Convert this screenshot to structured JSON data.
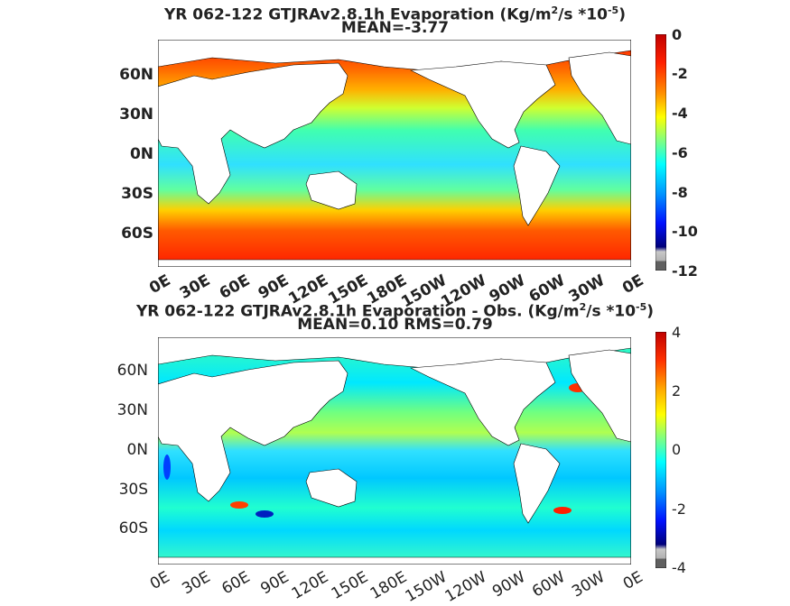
{
  "panel1": {
    "title_line1_pre": "YR 062-122 GTJRAv2.8.1h  Evaporation (Kg/m",
    "title_sup1": "2",
    "title_line1_mid": "/s *10",
    "title_sup2": "-5",
    "title_line1_post": ")",
    "title_line2": "MEAN=-3.77",
    "lat_labels": [
      "60N",
      "30N",
      "0N",
      "30S",
      "60S"
    ],
    "lon_labels": [
      "0E",
      "30E",
      "60E",
      "90E",
      "120E",
      "150E",
      "180E",
      "150W",
      "120W",
      "90W",
      "60W",
      "30W",
      "0E"
    ],
    "colorbar_ticks": [
      "0",
      "-2",
      "-4",
      "-6",
      "-8",
      "-10",
      "-12"
    ]
  },
  "panel2": {
    "title_line1_pre": "YR 062-122 GTJRAv2.8.1h Evaporation - Obs. (Kg/m",
    "title_sup1": "2",
    "title_line1_mid": "/s *10",
    "title_sup2": "-5",
    "title_line1_post": ")",
    "title_line2": "MEAN=0.10   RMS=0.79",
    "lat_labels": [
      "60N",
      "30N",
      "0N",
      "30S",
      "60S"
    ],
    "lon_labels": [
      "0E",
      "30E",
      "60E",
      "90E",
      "120E",
      "150E",
      "180E",
      "150W",
      "120W",
      "90W",
      "60W",
      "30W",
      "0E"
    ],
    "colorbar_ticks": [
      "4",
      "2",
      "0",
      "-2",
      "-4"
    ]
  },
  "colors": {
    "land": "#ffffff",
    "coast": "#000000",
    "jet_dark_red": "#8b0000",
    "jet_red": "#ff0000",
    "jet_orange": "#ff8c00",
    "jet_yellow": "#ffff00",
    "jet_green": "#7fff7f",
    "jet_cyan": "#00ffff",
    "jet_blue": "#0060ff",
    "jet_dark_blue": "#00008b"
  }
}
